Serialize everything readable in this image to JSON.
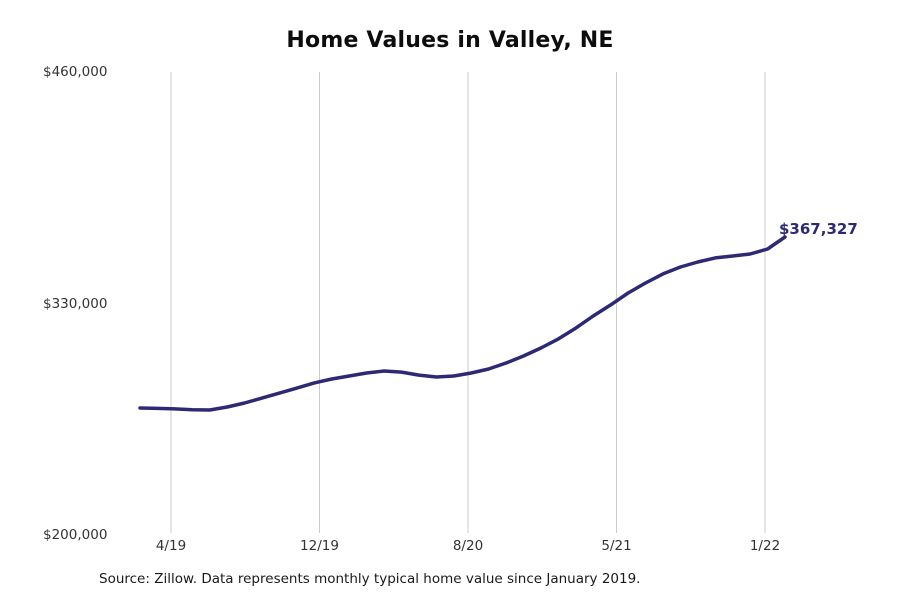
{
  "colors": {
    "line": "#2d2a74",
    "end_label": "#2d2a74",
    "grid": "#cccccc",
    "title": "#0d0d0d",
    "axis_label": "#333333",
    "source": "#1a1a1a",
    "background": "#ffffff"
  },
  "chart_data": {
    "type": "line",
    "title": "Home Values in Valley, NE",
    "source": "Source: Zillow. Data represents monthly typical home value since January 2019.",
    "x": [
      "1/19",
      "2/19",
      "3/19",
      "4/19",
      "5/19",
      "6/19",
      "7/19",
      "8/19",
      "9/19",
      "10/19",
      "11/19",
      "12/19",
      "1/20",
      "2/20",
      "3/20",
      "4/20",
      "5/20",
      "6/20",
      "7/20",
      "8/20",
      "9/20",
      "10/20",
      "11/20",
      "12/20",
      "1/21",
      "2/21",
      "3/21",
      "4/21",
      "5/21",
      "6/21",
      "7/21",
      "8/21",
      "9/21",
      "10/21",
      "11/21",
      "12/21",
      "1/22",
      "2/22"
    ],
    "values": [
      271300,
      271100,
      270800,
      270300,
      270200,
      271900,
      274100,
      276900,
      279700,
      282500,
      285400,
      287600,
      289300,
      291000,
      292100,
      291500,
      289800,
      288700,
      289300,
      291000,
      293200,
      296600,
      300500,
      305000,
      310100,
      316200,
      323000,
      329200,
      335900,
      341500,
      346600,
      350500,
      353300,
      355600,
      356700,
      357800,
      360600,
      367327
    ],
    "series_name": "Typical home value",
    "x_ticks": [
      "4/19",
      "12/19",
      "8/20",
      "5/21",
      "1/22"
    ],
    "y_ticks": [
      {
        "label": "$460,000",
        "value": 460000
      },
      {
        "label": "$330,000",
        "value": 330000
      },
      {
        "label": "$200,000",
        "value": 200000
      }
    ],
    "ylim": [
      200000,
      460000
    ],
    "grid": "vertical-only",
    "legend": "none",
    "end_annotation": {
      "label": "$367,327",
      "value": 367327
    }
  }
}
